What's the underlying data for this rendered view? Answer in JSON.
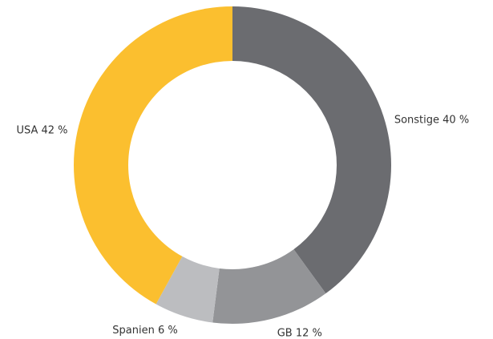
{
  "chart_data": {
    "type": "donut",
    "categories": [
      "Sonstige",
      "GB",
      "Spanien",
      "USA"
    ],
    "values": [
      40,
      12,
      6,
      42
    ],
    "value_labels": [
      "40 %",
      "12 %",
      "6 %",
      "42 %"
    ],
    "colors": [
      "#6b6c70",
      "#939497",
      "#bcbdc0",
      "#fbbf2f"
    ]
  }
}
